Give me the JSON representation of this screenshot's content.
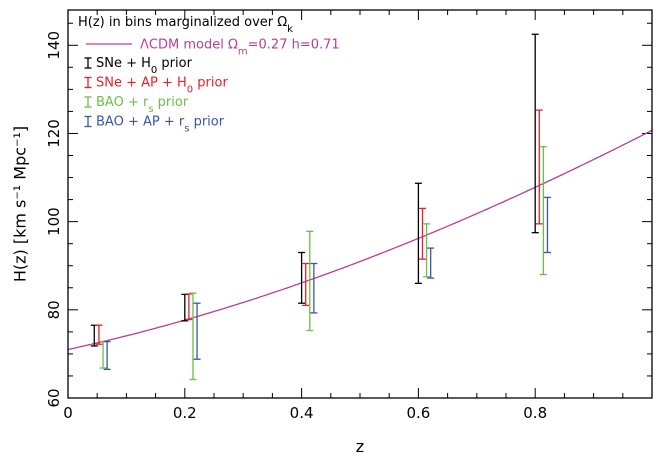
{
  "chart_data": {
    "type": "scatter",
    "xlabel": "z",
    "ylabel": "H(z) [km s⁻¹ Mpc⁻¹]",
    "xlim": [
      0,
      1.0
    ],
    "ylim": [
      60,
      148
    ],
    "x_ticks": [
      {
        "value": 0,
        "label": "0"
      },
      {
        "value": 0.2,
        "label": "0.2"
      },
      {
        "value": 0.4,
        "label": "0.4"
      },
      {
        "value": 0.6,
        "label": "0.6"
      },
      {
        "value": 0.8,
        "label": "0.8"
      }
    ],
    "y_ticks": [
      {
        "value": 60,
        "label": "60"
      },
      {
        "value": 80,
        "label": "80"
      },
      {
        "value": 100,
        "label": "100"
      },
      {
        "value": 120,
        "label": "120"
      },
      {
        "value": 140,
        "label": "140"
      }
    ],
    "legend": {
      "placement": "top-left",
      "title": {
        "text": "H(z) in bins marginalized over Ω",
        "sub": "k"
      },
      "model": {
        "parts": [
          {
            "t": "ΛCDM model Ω"
          },
          {
            "t": "m",
            "sub": true
          },
          {
            "t": "=0.27 h=0.71"
          }
        ],
        "color": "#b5409a"
      },
      "entries": [
        {
          "series": 0,
          "parts": [
            {
              "t": "SNe + H"
            },
            {
              "t": "0",
              "sub": true
            },
            {
              "t": " prior"
            }
          ]
        },
        {
          "series": 1,
          "parts": [
            {
              "t": "SNe + AP + H"
            },
            {
              "t": "0",
              "sub": true
            },
            {
              "t": " prior"
            }
          ]
        },
        {
          "series": 2,
          "parts": [
            {
              "t": "BAO + r"
            },
            {
              "t": "s",
              "sub": true
            },
            {
              "t": " prior"
            }
          ]
        },
        {
          "series": 3,
          "parts": [
            {
              "t": "BAO + AP + r"
            },
            {
              "t": "s",
              "sub": true
            },
            {
              "t": " prior"
            }
          ]
        }
      ]
    },
    "model_curve": {
      "color": "#b5409a",
      "omega_m": 0.27,
      "h": 0.71
    },
    "series": [
      {
        "color": "#000000",
        "points": [
          {
            "x": 0.045,
            "low": 71.8,
            "high": 76.5
          },
          {
            "x": 0.2,
            "low": 77.5,
            "high": 83.5
          },
          {
            "x": 0.4,
            "low": 81.5,
            "high": 93.0
          },
          {
            "x": 0.6,
            "low": 86.0,
            "high": 108.7
          },
          {
            "x": 0.8,
            "low": 97.5,
            "high": 142.5
          }
        ]
      },
      {
        "color": "#e8202a",
        "points": [
          {
            "x": 0.053,
            "low": 72.2,
            "high": 76.5
          },
          {
            "x": 0.207,
            "low": 77.8,
            "high": 83.6
          },
          {
            "x": 0.407,
            "low": 81.0,
            "high": 90.5
          },
          {
            "x": 0.607,
            "low": 91.5,
            "high": 103.0
          },
          {
            "x": 0.807,
            "low": 99.5,
            "high": 125.3
          }
        ]
      },
      {
        "color": "#6cbf45",
        "points": [
          {
            "x": 0.06,
            "low": 66.8,
            "high": 72.8
          },
          {
            "x": 0.214,
            "low": 64.2,
            "high": 83.8
          },
          {
            "x": 0.414,
            "low": 75.3,
            "high": 97.8
          },
          {
            "x": 0.614,
            "low": 87.5,
            "high": 99.5
          },
          {
            "x": 0.814,
            "low": 88.0,
            "high": 117.0
          }
        ]
      },
      {
        "color": "#3a55a4",
        "points": [
          {
            "x": 0.067,
            "low": 66.5,
            "high": 72.8
          },
          {
            "x": 0.221,
            "low": 68.8,
            "high": 81.5
          },
          {
            "x": 0.421,
            "low": 79.3,
            "high": 90.5
          },
          {
            "x": 0.621,
            "low": 87.2,
            "high": 94.0
          },
          {
            "x": 0.821,
            "low": 93.0,
            "high": 105.5
          }
        ]
      }
    ]
  }
}
